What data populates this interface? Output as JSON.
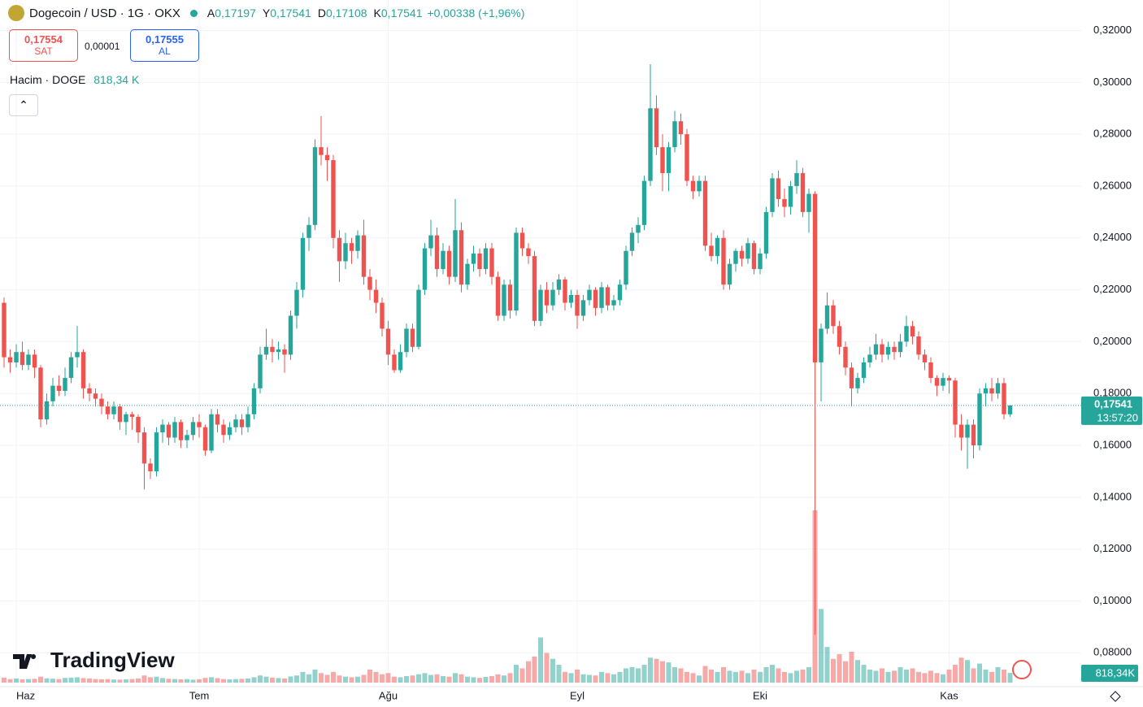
{
  "header": {
    "symbol": "Dogecoin / USD · 1G · OKX",
    "ohlc": [
      {
        "label": "A",
        "value": "0,17197"
      },
      {
        "label": "Y",
        "value": "0,17541"
      },
      {
        "label": "D",
        "value": "0,17108"
      },
      {
        "label": "K",
        "value": "0,17541"
      }
    ],
    "change": "+0,00338 (+1,96%)",
    "sell": {
      "price": "0,17554",
      "label": "SAT"
    },
    "spread": "0,00001",
    "buy": {
      "price": "0,17555",
      "label": "AL"
    },
    "volume_title": "Hacim · DOGE",
    "volume_value": "818,34 K"
  },
  "chart_data": {
    "type": "candlestick",
    "up_color": "#26a69a",
    "down_color": "#ef5350",
    "grid": true,
    "ylim": [
      0.0685,
      0.3255
    ],
    "yticks": [
      {
        "value": 0.08,
        "label": "0,08000"
      },
      {
        "value": 0.1,
        "label": "0,10000"
      },
      {
        "value": 0.12,
        "label": "0,12000"
      },
      {
        "value": 0.14,
        "label": "0,14000"
      },
      {
        "value": 0.16,
        "label": "0,16000"
      },
      {
        "value": 0.18,
        "label": "0,18000"
      },
      {
        "value": 0.2,
        "label": "0,20000"
      },
      {
        "value": 0.22,
        "label": "0,22000"
      },
      {
        "value": 0.24,
        "label": "0,24000"
      },
      {
        "value": 0.26,
        "label": "0,26000"
      },
      {
        "value": 0.28,
        "label": "0,28000"
      },
      {
        "value": 0.3,
        "label": "0,30000"
      },
      {
        "value": 0.32,
        "label": "0,32000"
      }
    ],
    "xticks": [
      {
        "value": 2,
        "label": "Haz"
      },
      {
        "value": 32,
        "label": "Tem"
      },
      {
        "value": 63,
        "label": "Ağu"
      },
      {
        "value": 94,
        "label": "Eyl"
      },
      {
        "value": 124,
        "label": "Eki"
      },
      {
        "value": 155,
        "label": "Kas"
      }
    ],
    "last_price": {
      "value": 0.17541,
      "label": "0,17541"
    },
    "countdown": "13:57:20",
    "volume_tag": "818,34K",
    "ohlc": [
      [
        0.215,
        0.217,
        0.19,
        0.194
      ],
      [
        0.194,
        0.197,
        0.188,
        0.192
      ],
      [
        0.192,
        0.199,
        0.19,
        0.196
      ],
      [
        0.196,
        0.2,
        0.189,
        0.191
      ],
      [
        0.191,
        0.197,
        0.189,
        0.195
      ],
      [
        0.195,
        0.197,
        0.186,
        0.19
      ],
      [
        0.19,
        0.191,
        0.167,
        0.17
      ],
      [
        0.17,
        0.18,
        0.168,
        0.177
      ],
      [
        0.177,
        0.186,
        0.175,
        0.183
      ],
      [
        0.183,
        0.187,
        0.179,
        0.181
      ],
      [
        0.181,
        0.19,
        0.179,
        0.186
      ],
      [
        0.186,
        0.196,
        0.184,
        0.194
      ],
      [
        0.194,
        0.206,
        0.19,
        0.196
      ],
      [
        0.196,
        0.197,
        0.178,
        0.182
      ],
      [
        0.182,
        0.184,
        0.177,
        0.18
      ],
      [
        0.18,
        0.182,
        0.175,
        0.178
      ],
      [
        0.178,
        0.18,
        0.172,
        0.175
      ],
      [
        0.175,
        0.177,
        0.17,
        0.172
      ],
      [
        0.172,
        0.177,
        0.17,
        0.175
      ],
      [
        0.175,
        0.176,
        0.166,
        0.169
      ],
      [
        0.169,
        0.173,
        0.164,
        0.172
      ],
      [
        0.172,
        0.173,
        0.166,
        0.171
      ],
      [
        0.171,
        0.172,
        0.161,
        0.165
      ],
      [
        0.165,
        0.167,
        0.143,
        0.153
      ],
      [
        0.153,
        0.155,
        0.147,
        0.15
      ],
      [
        0.15,
        0.167,
        0.148,
        0.165
      ],
      [
        0.165,
        0.17,
        0.161,
        0.168
      ],
      [
        0.168,
        0.169,
        0.16,
        0.163
      ],
      [
        0.163,
        0.171,
        0.161,
        0.169
      ],
      [
        0.169,
        0.17,
        0.159,
        0.162
      ],
      [
        0.162,
        0.166,
        0.159,
        0.164
      ],
      [
        0.164,
        0.171,
        0.162,
        0.169
      ],
      [
        0.169,
        0.172,
        0.163,
        0.167
      ],
      [
        0.167,
        0.168,
        0.156,
        0.158
      ],
      [
        0.158,
        0.174,
        0.157,
        0.172
      ],
      [
        0.172,
        0.174,
        0.165,
        0.168
      ],
      [
        0.168,
        0.17,
        0.161,
        0.164
      ],
      [
        0.164,
        0.169,
        0.162,
        0.167
      ],
      [
        0.167,
        0.172,
        0.165,
        0.17
      ],
      [
        0.17,
        0.172,
        0.164,
        0.167
      ],
      [
        0.167,
        0.175,
        0.165,
        0.172
      ],
      [
        0.172,
        0.184,
        0.17,
        0.182
      ],
      [
        0.182,
        0.198,
        0.18,
        0.195
      ],
      [
        0.195,
        0.205,
        0.193,
        0.198
      ],
      [
        0.198,
        0.201,
        0.192,
        0.196
      ],
      [
        0.196,
        0.2,
        0.193,
        0.197
      ],
      [
        0.197,
        0.199,
        0.188,
        0.195
      ],
      [
        0.195,
        0.212,
        0.193,
        0.21
      ],
      [
        0.21,
        0.223,
        0.205,
        0.22
      ],
      [
        0.22,
        0.242,
        0.217,
        0.24
      ],
      [
        0.24,
        0.248,
        0.235,
        0.245
      ],
      [
        0.245,
        0.278,
        0.243,
        0.275
      ],
      [
        0.275,
        0.287,
        0.268,
        0.272
      ],
      [
        0.272,
        0.275,
        0.262,
        0.27
      ],
      [
        0.27,
        0.272,
        0.236,
        0.24
      ],
      [
        0.24,
        0.243,
        0.223,
        0.231
      ],
      [
        0.231,
        0.242,
        0.228,
        0.238
      ],
      [
        0.238,
        0.24,
        0.23,
        0.235
      ],
      [
        0.235,
        0.243,
        0.232,
        0.241
      ],
      [
        0.241,
        0.247,
        0.222,
        0.225
      ],
      [
        0.225,
        0.228,
        0.216,
        0.22
      ],
      [
        0.22,
        0.224,
        0.211,
        0.215
      ],
      [
        0.215,
        0.217,
        0.202,
        0.205
      ],
      [
        0.205,
        0.208,
        0.191,
        0.195
      ],
      [
        0.195,
        0.197,
        0.188,
        0.189
      ],
      [
        0.189,
        0.199,
        0.188,
        0.196
      ],
      [
        0.196,
        0.207,
        0.194,
        0.205
      ],
      [
        0.205,
        0.207,
        0.196,
        0.198
      ],
      [
        0.198,
        0.222,
        0.197,
        0.22
      ],
      [
        0.22,
        0.238,
        0.218,
        0.236
      ],
      [
        0.236,
        0.247,
        0.233,
        0.241
      ],
      [
        0.241,
        0.244,
        0.225,
        0.228
      ],
      [
        0.228,
        0.238,
        0.226,
        0.235
      ],
      [
        0.235,
        0.237,
        0.222,
        0.225
      ],
      [
        0.225,
        0.255,
        0.223,
        0.243
      ],
      [
        0.243,
        0.246,
        0.219,
        0.222
      ],
      [
        0.222,
        0.232,
        0.22,
        0.23
      ],
      [
        0.23,
        0.237,
        0.227,
        0.234
      ],
      [
        0.234,
        0.236,
        0.225,
        0.228
      ],
      [
        0.228,
        0.238,
        0.226,
        0.236
      ],
      [
        0.236,
        0.238,
        0.222,
        0.225
      ],
      [
        0.225,
        0.227,
        0.208,
        0.21
      ],
      [
        0.21,
        0.224,
        0.208,
        0.222
      ],
      [
        0.222,
        0.224,
        0.209,
        0.212
      ],
      [
        0.212,
        0.244,
        0.21,
        0.242
      ],
      [
        0.242,
        0.244,
        0.233,
        0.236
      ],
      [
        0.236,
        0.238,
        0.23,
        0.233
      ],
      [
        0.233,
        0.235,
        0.206,
        0.208
      ],
      [
        0.208,
        0.222,
        0.206,
        0.22
      ],
      [
        0.22,
        0.223,
        0.211,
        0.214
      ],
      [
        0.214,
        0.223,
        0.212,
        0.22
      ],
      [
        0.22,
        0.226,
        0.218,
        0.224
      ],
      [
        0.224,
        0.225,
        0.212,
        0.215
      ],
      [
        0.215,
        0.22,
        0.213,
        0.218
      ],
      [
        0.218,
        0.22,
        0.205,
        0.21
      ],
      [
        0.21,
        0.218,
        0.208,
        0.216
      ],
      [
        0.216,
        0.222,
        0.214,
        0.22
      ],
      [
        0.22,
        0.221,
        0.21,
        0.213
      ],
      [
        0.213,
        0.223,
        0.211,
        0.221
      ],
      [
        0.221,
        0.222,
        0.212,
        0.214
      ],
      [
        0.214,
        0.218,
        0.212,
        0.216
      ],
      [
        0.216,
        0.224,
        0.214,
        0.222
      ],
      [
        0.222,
        0.237,
        0.22,
        0.235
      ],
      [
        0.235,
        0.244,
        0.233,
        0.242
      ],
      [
        0.242,
        0.248,
        0.238,
        0.245
      ],
      [
        0.245,
        0.264,
        0.243,
        0.262
      ],
      [
        0.262,
        0.307,
        0.26,
        0.29
      ],
      [
        0.29,
        0.295,
        0.272,
        0.275
      ],
      [
        0.275,
        0.28,
        0.258,
        0.265
      ],
      [
        0.265,
        0.277,
        0.258,
        0.275
      ],
      [
        0.275,
        0.289,
        0.273,
        0.285
      ],
      [
        0.285,
        0.288,
        0.276,
        0.28
      ],
      [
        0.28,
        0.282,
        0.26,
        0.262
      ],
      [
        0.262,
        0.264,
        0.255,
        0.258
      ],
      [
        0.258,
        0.264,
        0.256,
        0.262
      ],
      [
        0.262,
        0.264,
        0.235,
        0.237
      ],
      [
        0.237,
        0.242,
        0.231,
        0.233
      ],
      [
        0.233,
        0.241,
        0.23,
        0.24
      ],
      [
        0.24,
        0.243,
        0.22,
        0.222
      ],
      [
        0.222,
        0.232,
        0.22,
        0.23
      ],
      [
        0.23,
        0.236,
        0.227,
        0.235
      ],
      [
        0.235,
        0.237,
        0.229,
        0.232
      ],
      [
        0.232,
        0.24,
        0.23,
        0.238
      ],
      [
        0.238,
        0.239,
        0.226,
        0.228
      ],
      [
        0.228,
        0.236,
        0.226,
        0.234
      ],
      [
        0.234,
        0.252,
        0.232,
        0.25
      ],
      [
        0.25,
        0.265,
        0.248,
        0.263
      ],
      [
        0.263,
        0.266,
        0.252,
        0.255
      ],
      [
        0.255,
        0.259,
        0.248,
        0.252
      ],
      [
        0.252,
        0.262,
        0.249,
        0.26
      ],
      [
        0.26,
        0.27,
        0.257,
        0.265
      ],
      [
        0.265,
        0.267,
        0.248,
        0.25
      ],
      [
        0.25,
        0.259,
        0.242,
        0.257
      ],
      [
        0.257,
        0.258,
        0.087,
        0.192
      ],
      [
        0.192,
        0.207,
        0.177,
        0.205
      ],
      [
        0.205,
        0.219,
        0.203,
        0.214
      ],
      [
        0.214,
        0.216,
        0.203,
        0.206
      ],
      [
        0.206,
        0.208,
        0.195,
        0.198
      ],
      [
        0.198,
        0.2,
        0.187,
        0.19
      ],
      [
        0.19,
        0.192,
        0.175,
        0.182
      ],
      [
        0.182,
        0.188,
        0.18,
        0.186
      ],
      [
        0.186,
        0.194,
        0.184,
        0.192
      ],
      [
        0.192,
        0.198,
        0.19,
        0.195
      ],
      [
        0.195,
        0.203,
        0.193,
        0.199
      ],
      [
        0.199,
        0.201,
        0.192,
        0.195
      ],
      [
        0.195,
        0.2,
        0.193,
        0.198
      ],
      [
        0.198,
        0.2,
        0.193,
        0.196
      ],
      [
        0.196,
        0.203,
        0.194,
        0.2
      ],
      [
        0.2,
        0.21,
        0.198,
        0.206
      ],
      [
        0.206,
        0.208,
        0.199,
        0.202
      ],
      [
        0.202,
        0.204,
        0.193,
        0.195
      ],
      [
        0.195,
        0.197,
        0.189,
        0.192
      ],
      [
        0.192,
        0.194,
        0.184,
        0.186
      ],
      [
        0.186,
        0.187,
        0.179,
        0.183
      ],
      [
        0.183,
        0.188,
        0.181,
        0.186
      ],
      [
        0.186,
        0.187,
        0.18,
        0.185
      ],
      [
        0.185,
        0.186,
        0.163,
        0.168
      ],
      [
        0.168,
        0.172,
        0.158,
        0.163
      ],
      [
        0.163,
        0.17,
        0.151,
        0.168
      ],
      [
        0.168,
        0.17,
        0.155,
        0.16
      ],
      [
        0.16,
        0.182,
        0.158,
        0.18
      ],
      [
        0.18,
        0.184,
        0.175,
        0.182
      ],
      [
        0.182,
        0.186,
        0.177,
        0.18
      ],
      [
        0.18,
        0.186,
        0.178,
        0.184
      ],
      [
        0.184,
        0.186,
        0.17,
        0.172
      ],
      [
        0.17197,
        0.17541,
        0.17108,
        0.17541
      ]
    ],
    "volume": [
      420,
      300,
      350,
      280,
      300,
      320,
      500,
      360,
      330,
      300,
      400,
      420,
      450,
      380,
      350,
      300,
      280,
      300,
      260,
      250,
      280,
      300,
      350,
      600,
      450,
      500,
      380,
      320,
      300,
      280,
      300,
      250,
      280,
      400,
      450,
      380,
      300,
      280,
      300,
      320,
      350,
      450,
      600,
      500,
      420,
      380,
      350,
      520,
      600,
      900,
      700,
      1100,
      800,
      650,
      900,
      600,
      500,
      450,
      500,
      650,
      1100,
      900,
      700,
      800,
      500,
      450,
      550,
      600,
      700,
      800,
      650,
      700,
      550,
      500,
      800,
      700,
      500,
      450,
      400,
      480,
      550,
      700,
      600,
      800,
      1500,
      1200,
      1800,
      2200,
      3800,
      2500,
      2000,
      1500,
      900,
      800,
      1100,
      700,
      650,
      600,
      900,
      800,
      700,
      900,
      1200,
      1300,
      1200,
      1500,
      2100,
      2000,
      1800,
      1700,
      1300,
      1200,
      900,
      800,
      600,
      1400,
      1100,
      900,
      1300,
      1000,
      900,
      1000,
      800,
      1100,
      900,
      1300,
      1500,
      1200,
      900,
      800,
      1000,
      1100,
      1300,
      14500,
      6200,
      3000,
      2000,
      2400,
      1800,
      2600,
      1900,
      1500,
      1100,
      1000,
      1200,
      900,
      1000,
      1300,
      1100,
      1200,
      900,
      800,
      1000,
      800,
      700,
      1100,
      1500,
      2100,
      1900,
      1200,
      1600,
      1100,
      900,
      1300,
      1100,
      818.34
    ],
    "brand": "TradingView"
  }
}
